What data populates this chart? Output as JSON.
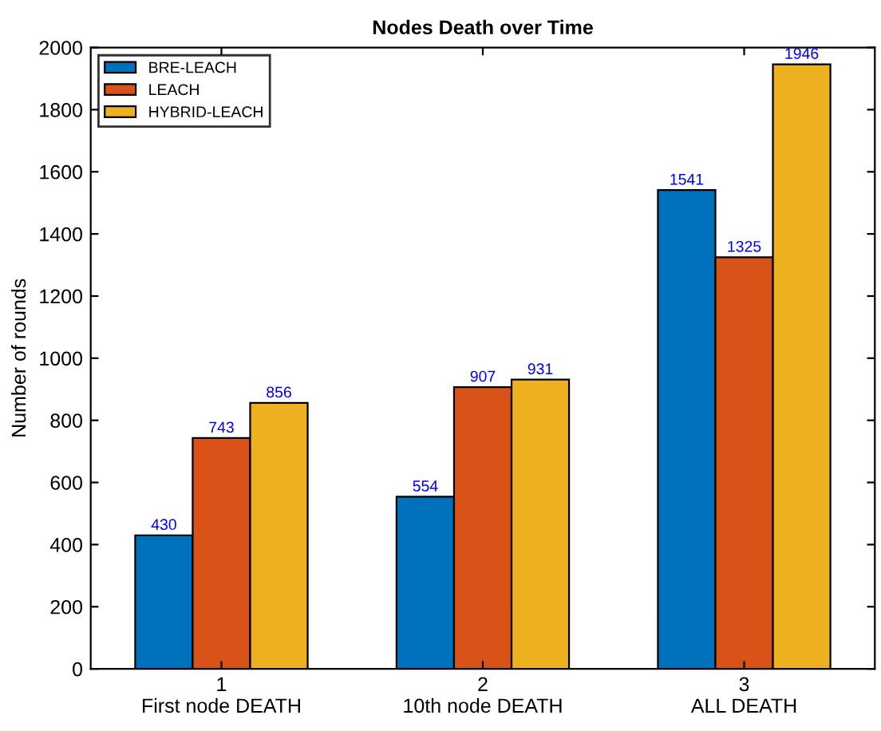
{
  "chart_data": {
    "type": "bar",
    "title": "Nodes Death over Time",
    "ylabel": "Number of rounds",
    "categories": [
      "1\nFirst node DEATH",
      "2\n10th node DEATH",
      "3\nALL DEATH"
    ],
    "series": [
      {
        "name": "BRE-LEACH",
        "color": "#0072bd",
        "values": [
          430,
          554,
          1541
        ]
      },
      {
        "name": "LEACH",
        "color": "#d95319",
        "values": [
          743,
          907,
          1325
        ]
      },
      {
        "name": "HYBRID-LEACH",
        "color": "#edb120",
        "values": [
          856,
          931,
          1946
        ]
      }
    ],
    "ylim": [
      0,
      2000
    ],
    "yticks": [
      0,
      200,
      400,
      600,
      800,
      1000,
      1200,
      1400,
      1600,
      1800,
      2000
    ],
    "data_labels": true,
    "legend": "top left",
    "grid": false
  }
}
